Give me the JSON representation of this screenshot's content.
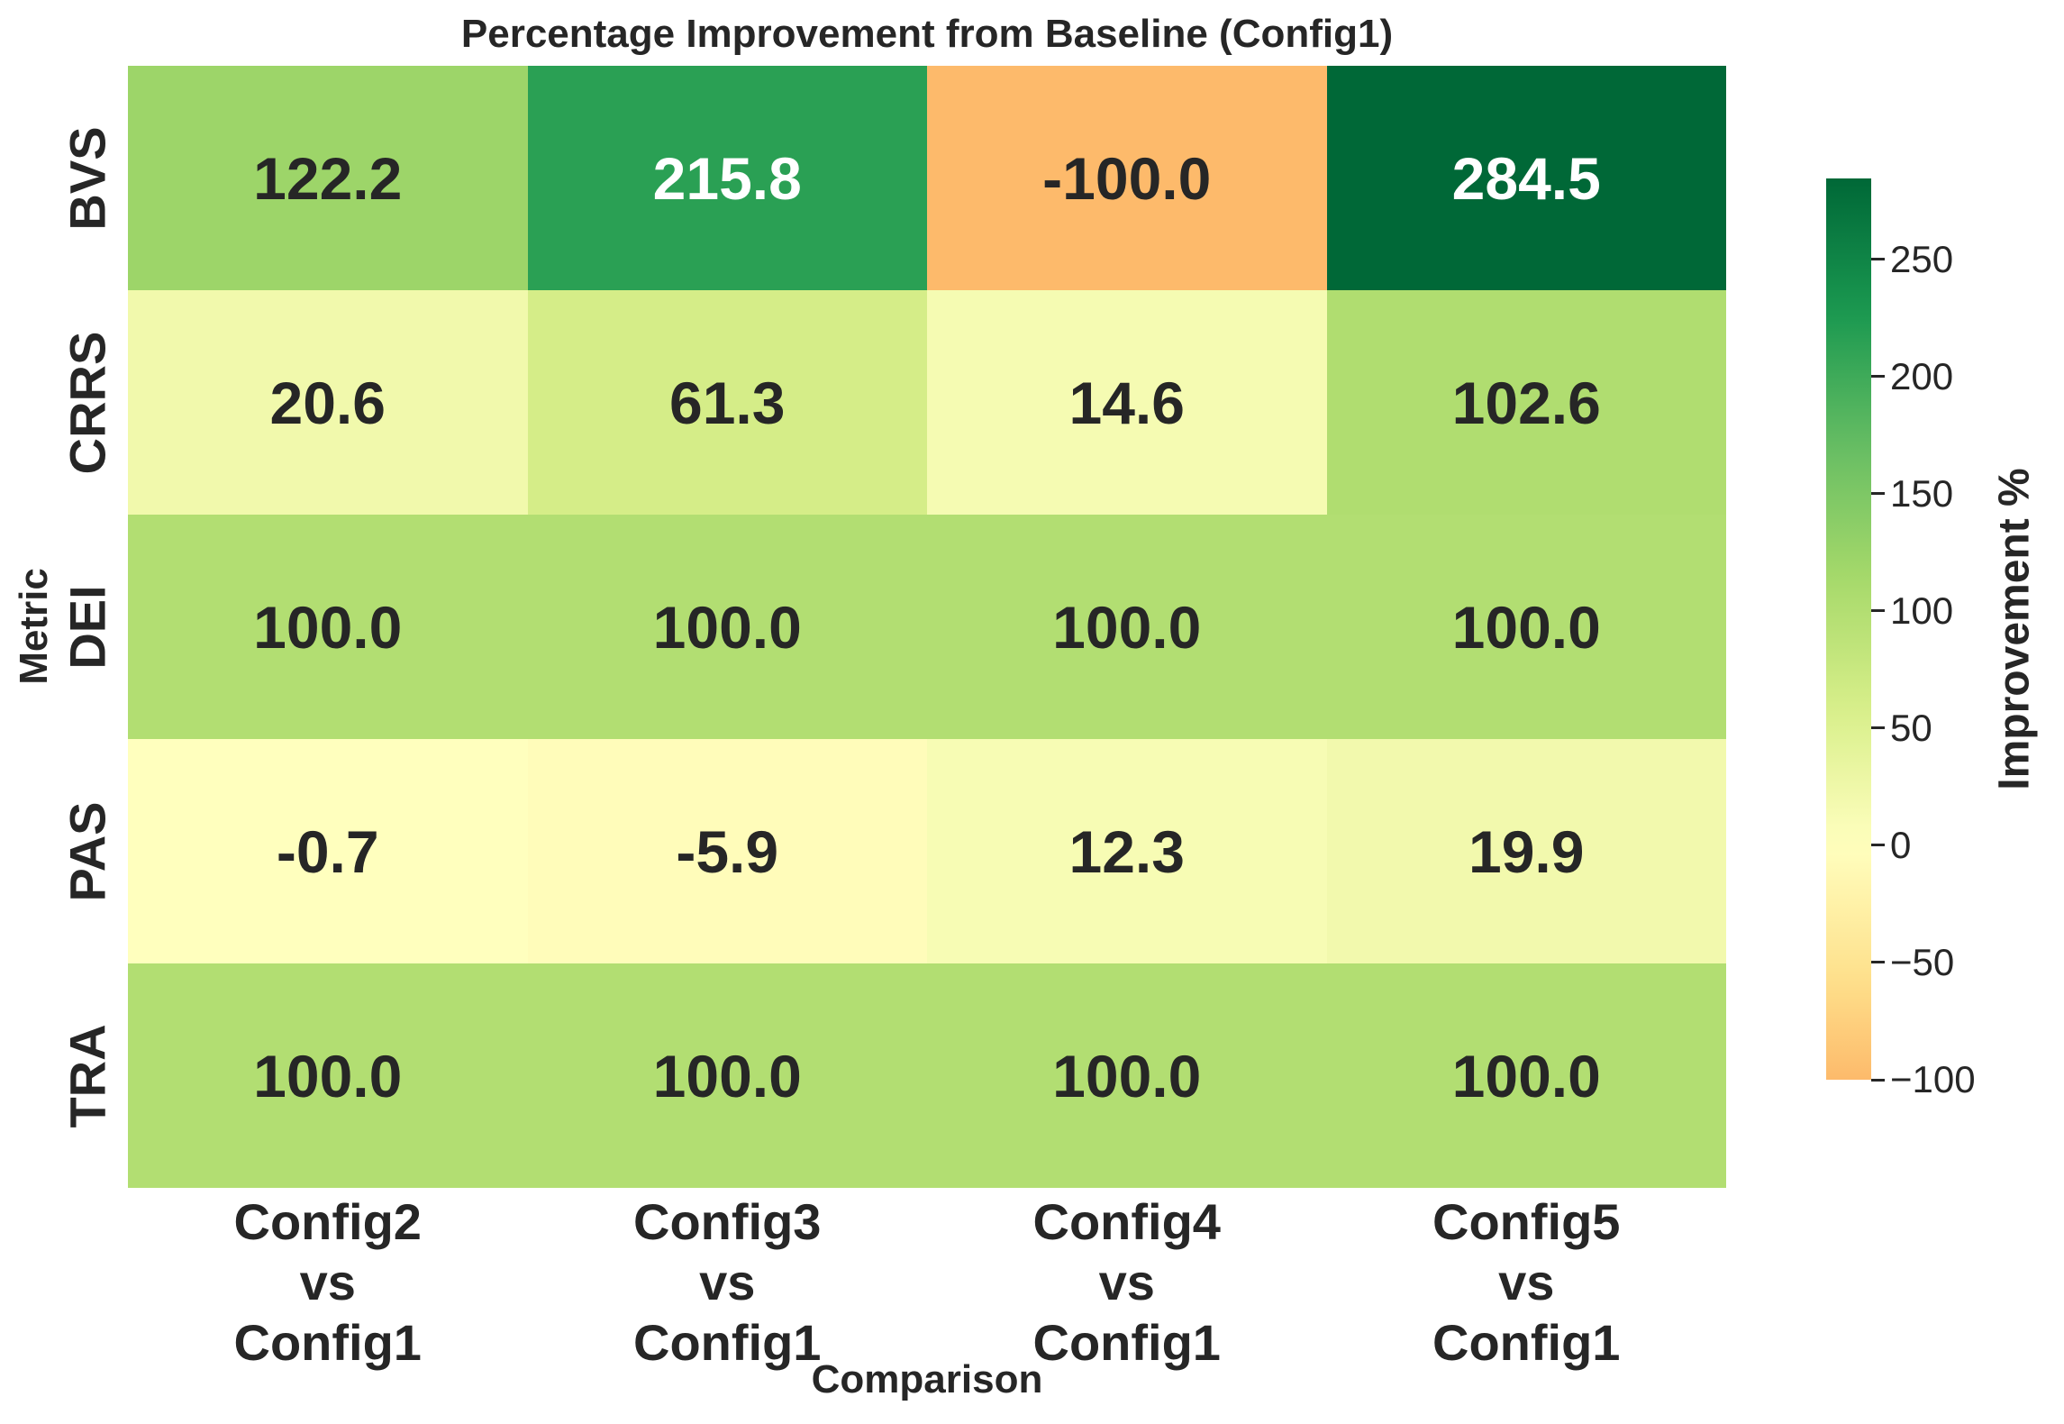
{
  "title": "Percentage Improvement from Baseline (Config1)",
  "chart_data": {
    "type": "heatmap",
    "title": "Percentage Improvement from Baseline (Config1)",
    "xlabel": "Comparison",
    "ylabel": "Metric",
    "rows": [
      "BVS",
      "CRRS",
      "DEI",
      "PAS",
      "TRA"
    ],
    "columns": [
      [
        "Config2",
        "vs",
        "Config1"
      ],
      [
        "Config3",
        "vs",
        "Config1"
      ],
      [
        "Config4",
        "vs",
        "Config1"
      ],
      [
        "Config5",
        "vs",
        "Config1"
      ]
    ],
    "values": [
      [
        122.2,
        215.8,
        -100.0,
        284.5
      ],
      [
        20.6,
        61.3,
        14.6,
        102.6
      ],
      [
        100.0,
        100.0,
        100.0,
        100.0
      ],
      [
        -0.7,
        -5.9,
        12.3,
        19.9
      ],
      [
        100.0,
        100.0,
        100.0,
        100.0
      ]
    ],
    "value_decimals": 1,
    "colorbar": {
      "label": "Improvement %",
      "ticks": [
        250,
        200,
        150,
        100,
        50,
        0,
        -50,
        -100
      ],
      "tick_labels": [
        "250",
        "200",
        "150",
        "100",
        "50",
        "0",
        "−50",
        "−100"
      ],
      "vmin": -100.0,
      "vmax": 284.5,
      "center": 0
    },
    "colormap": {
      "name": "RdYlGn",
      "anchors": [
        "#a50026",
        "#d73027",
        "#f46d43",
        "#fdae61",
        "#fee08b",
        "#ffffbf",
        "#d9ef8b",
        "#a6d96a",
        "#66bd63",
        "#1a9850",
        "#006837"
      ]
    },
    "annotation_text_colors": {
      "dark": "#262626",
      "light": "#ffffff"
    },
    "text_color": "#262626",
    "background": "#ffffff",
    "grid": false,
    "legend_position": "right-colorbar"
  }
}
